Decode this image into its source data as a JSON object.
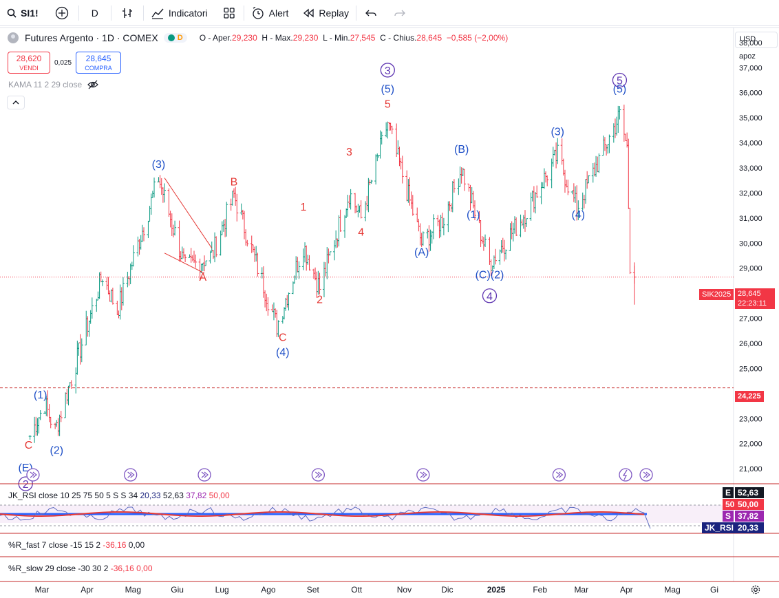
{
  "toolbar": {
    "symbol": "SI1!",
    "interval": "D",
    "indicators_label": "Indicatori",
    "alert_label": "Alert",
    "replay_label": "Replay"
  },
  "legend": {
    "title": "Futures Argento · 1D · COMEX",
    "market_status": "D",
    "open_label": "O - Aper.",
    "open": "29,230",
    "high_label": "H - Max.",
    "high": "29,230",
    "low_label": "L - Min.",
    "low": "27,545",
    "close_label": "C - Chius.",
    "close": "28,645",
    "change": "−0,585 (−2,00%)"
  },
  "trade": {
    "sell_price": "28,620",
    "sell_label": "VENDI",
    "spread": "0,025",
    "buy_price": "28,645",
    "buy_label": "COMPRA"
  },
  "kama": "KAMA 11 2 29 close",
  "axis": {
    "currency": "USD",
    "mode": "apoz",
    "price_tag_symbol": "SIK2025",
    "price_tag_value": "28,645",
    "price_tag_time": "22:23:11",
    "level_tag": "24,225"
  },
  "panels": {
    "rsi": {
      "label": "JK_RSI close 10 25 75 50 5 S S 34",
      "v1": "20,33",
      "v2": "52,63",
      "v3": "37,82",
      "v4": "50,00"
    },
    "rsi_tags": [
      {
        "key": "E",
        "value": "52,63",
        "color": "#131722"
      },
      {
        "key": "50",
        "value": "50,00",
        "color": "#f23645"
      },
      {
        "key": "S",
        "value": "37,82",
        "color": "#9c27b0"
      },
      {
        "key": "JK_RSI",
        "value": "20,33",
        "color": "#1a237e"
      }
    ],
    "rfast": {
      "label": "%R_fast 7 close -15 15 2",
      "v1": "-36,16",
      "v2": "0,00"
    },
    "rslow": {
      "label": "%R_slow 29 close -30 30 2",
      "v1": "-36,16",
      "v2": "0,00"
    }
  },
  "chart_data": {
    "type": "ohlc",
    "title": "Futures Argento · 1D · COMEX",
    "ylim": [
      20400,
      38600
    ],
    "y_ticks": [
      21000,
      22000,
      23000,
      24000,
      25000,
      26000,
      27000,
      28000,
      29000,
      30000,
      31000,
      32000,
      33000,
      34000,
      35000,
      36000,
      37000,
      38000
    ],
    "y_tick_labels": [
      "21,000",
      "22,000",
      "23,000",
      "",
      "25,000",
      "26,000",
      "27,000",
      "",
      "29,000",
      "30,000",
      "31,000",
      "32,000",
      "33,000",
      "34,000",
      "35,000",
      "36,000",
      "37,000",
      "38,000"
    ],
    "x_labels": [
      "Mar",
      "Apr",
      "Mag",
      "Giu",
      "Lug",
      "Ago",
      "Set",
      "Ott",
      "Nov",
      "Dic",
      "2025",
      "Feb",
      "Mar",
      "Apr",
      "Mag",
      "Gi"
    ],
    "key_prices": [
      {
        "date": "2024-02-23",
        "price": 22300
      },
      {
        "date": "2024-03-04",
        "price": 23600
      },
      {
        "date": "2024-03-11",
        "price": 22500
      },
      {
        "date": "2024-04-12",
        "price": 28700
      },
      {
        "date": "2024-04-22",
        "price": 27300
      },
      {
        "date": "2024-05-20",
        "price": 32600
      },
      {
        "date": "2024-06-07",
        "price": 29000
      },
      {
        "date": "2024-06-25",
        "price": 29500
      },
      {
        "date": "2024-07-10",
        "price": 31900
      },
      {
        "date": "2024-08-08",
        "price": 26700
      },
      {
        "date": "2024-08-26",
        "price": 29900
      },
      {
        "date": "2024-09-06",
        "price": 28200
      },
      {
        "date": "2024-09-26",
        "price": 32000
      },
      {
        "date": "2024-10-04",
        "price": 31000
      },
      {
        "date": "2024-10-22",
        "price": 34800
      },
      {
        "date": "2024-11-14",
        "price": 30000
      },
      {
        "date": "2024-11-29",
        "price": 31000
      },
      {
        "date": "2024-12-11",
        "price": 33000
      },
      {
        "date": "2024-12-30",
        "price": 29200
      },
      {
        "date": "2025-01-21",
        "price": 31000
      },
      {
        "date": "2025-02-14",
        "price": 33500
      },
      {
        "date": "2025-02-27",
        "price": 31400
      },
      {
        "date": "2025-03-28",
        "price": 35100
      },
      {
        "date": "2025-04-02",
        "price": 33800
      },
      {
        "date": "2025-04-04",
        "price": 29200
      },
      {
        "date": "2025-04-07",
        "price": 28645
      }
    ],
    "last_price": 28645,
    "horizontal_level": 24225,
    "wave_labels": [
      {
        "text": "(1)",
        "date": "2024-03-01",
        "price": 23800,
        "color": "#1e4fc7"
      },
      {
        "text": "C",
        "date": "2024-02-22",
        "price": 21800,
        "color": "#e53935"
      },
      {
        "text": "(2)",
        "date": "2024-03-12",
        "price": 21600,
        "color": "#1e4fc7"
      },
      {
        "text": "(E)",
        "date": "2024-02-20",
        "price": 20900,
        "color": "#1e4fc7"
      },
      {
        "text": "(3)",
        "date": "2024-05-20",
        "price": 33000,
        "color": "#1e4fc7"
      },
      {
        "text": "A",
        "date": "2024-06-19",
        "price": 28500,
        "color": "#e53935"
      },
      {
        "text": "B",
        "date": "2024-07-10",
        "price": 32300,
        "color": "#e53935"
      },
      {
        "text": "C",
        "date": "2024-08-12",
        "price": 26100,
        "color": "#e53935"
      },
      {
        "text": "(4)",
        "date": "2024-08-12",
        "price": 25500,
        "color": "#1e4fc7"
      },
      {
        "text": "1",
        "date": "2024-08-26",
        "price": 31300,
        "color": "#e53935"
      },
      {
        "text": "2",
        "date": "2024-09-06",
        "price": 27600,
        "color": "#e53935"
      },
      {
        "text": "3",
        "date": "2024-09-26",
        "price": 33500,
        "color": "#e53935"
      },
      {
        "text": "4",
        "date": "2024-10-04",
        "price": 30300,
        "color": "#e53935"
      },
      {
        "text": "5",
        "date": "2024-10-22",
        "price": 35400,
        "color": "#e53935"
      },
      {
        "text": "(5)",
        "date": "2024-10-22",
        "price": 36000,
        "color": "#1e4fc7"
      },
      {
        "text": "(A)",
        "date": "2024-11-14",
        "price": 29500,
        "color": "#1e4fc7"
      },
      {
        "text": "(B)",
        "date": "2024-12-11",
        "price": 33600,
        "color": "#1e4fc7"
      },
      {
        "text": "(1)",
        "date": "2024-12-19",
        "price": 31000,
        "color": "#1e4fc7"
      },
      {
        "text": "(C)(2)",
        "date": "2024-12-30",
        "price": 28600,
        "color": "#1e4fc7"
      },
      {
        "text": "(3)",
        "date": "2025-02-14",
        "price": 34300,
        "color": "#1e4fc7"
      },
      {
        "text": "(4)",
        "date": "2025-02-28",
        "price": 31000,
        "color": "#1e4fc7"
      },
      {
        "text": "(5)",
        "date": "2025-03-28",
        "price": 36000,
        "color": "#1e4fc7"
      }
    ],
    "circled_labels": [
      {
        "text": "3",
        "date": "2024-10-22",
        "price": 36900
      },
      {
        "text": "4",
        "date": "2024-12-30",
        "price": 27900
      },
      {
        "text": "5",
        "date": "2025-03-28",
        "price": 36500
      },
      {
        "text": "2",
        "date": "2024-02-20",
        "price": 20400
      }
    ],
    "colors": {
      "up": "#089981",
      "down": "#f23645",
      "wave_blue": "#1e4fc7",
      "wave_red": "#e53935",
      "circle": "#5e35b1"
    }
  }
}
